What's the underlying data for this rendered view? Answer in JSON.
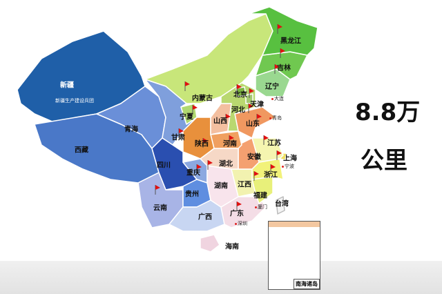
{
  "headline": {
    "line1": "8.8万",
    "line2": "公里"
  },
  "provinces": {
    "xinjiang": {
      "name": "新疆",
      "color": "#1f5fa8"
    },
    "xizang": {
      "name": "西藏",
      "color": "#4a78c8"
    },
    "qinghai": {
      "name": "青海",
      "color": "#6a8fd8"
    },
    "gansu": {
      "name": "甘肃",
      "color": "#7f9fdc"
    },
    "sichuan": {
      "name": "四川",
      "color": "#2a4fb0"
    },
    "yunnan": {
      "name": "云南",
      "color": "#a8b4e6"
    },
    "guizhou": {
      "name": "贵州",
      "color": "#5f8ee0"
    },
    "chongqing": {
      "name": "重庆",
      "color": "#8ca8e0"
    },
    "guangxi": {
      "name": "广西",
      "color": "#c8d6f2"
    },
    "guangdong": {
      "name": "广东",
      "color": "#f4dde6"
    },
    "hainan": {
      "name": "海南",
      "color": "#f0d4e0"
    },
    "hunan": {
      "name": "湖南",
      "color": "#f8e4ec"
    },
    "jiangxi": {
      "name": "江西",
      "color": "#f2f2b0"
    },
    "fujian": {
      "name": "福建",
      "color": "#e8f07a"
    },
    "zhejiang": {
      "name": "浙江",
      "color": "#f2f27a"
    },
    "shanghai": {
      "name": "上海",
      "color": "#f0e060"
    },
    "jiangsu": {
      "name": "江苏",
      "color": "#f5f5b0"
    },
    "anhui": {
      "name": "安徽",
      "color": "#f4a070"
    },
    "hubei": {
      "name": "湖北",
      "color": "#f6d8c6"
    },
    "henan": {
      "name": "河南",
      "color": "#f0a060"
    },
    "shaanxi": {
      "name": "陕西",
      "color": "#e8903c"
    },
    "shanxi": {
      "name": "山西",
      "color": "#f3bfa0"
    },
    "shandong": {
      "name": "山东",
      "color": "#f09860"
    },
    "hebei": {
      "name": "河北",
      "color": "#b9d870"
    },
    "beijing": {
      "name": "北京",
      "color": "#7cb342"
    },
    "tianjin": {
      "name": "天津",
      "color": "#a4c870"
    },
    "ningxia": {
      "name": "宁夏",
      "color": "#b0d870"
    },
    "neimenggu": {
      "name": "内蒙古",
      "color": "#c8e67a"
    },
    "liaoning": {
      "name": "辽宁",
      "color": "#9ad890"
    },
    "jilin": {
      "name": "吉林",
      "color": "#70c850"
    },
    "heilongjiang": {
      "name": "黑龙江",
      "color": "#58c040"
    },
    "taiwan": {
      "name": "台湾",
      "color": "#f4f4f4"
    }
  },
  "xinjiang_corps": "新疆生产建设兵团",
  "cities": {
    "dalian": "大连",
    "qingdao": "青岛",
    "ningbo": "宁波",
    "xiamen": "厦门",
    "shenzhen": "深圳"
  },
  "inset": {
    "label": "南海诸岛"
  },
  "flag_color": "#e01010"
}
